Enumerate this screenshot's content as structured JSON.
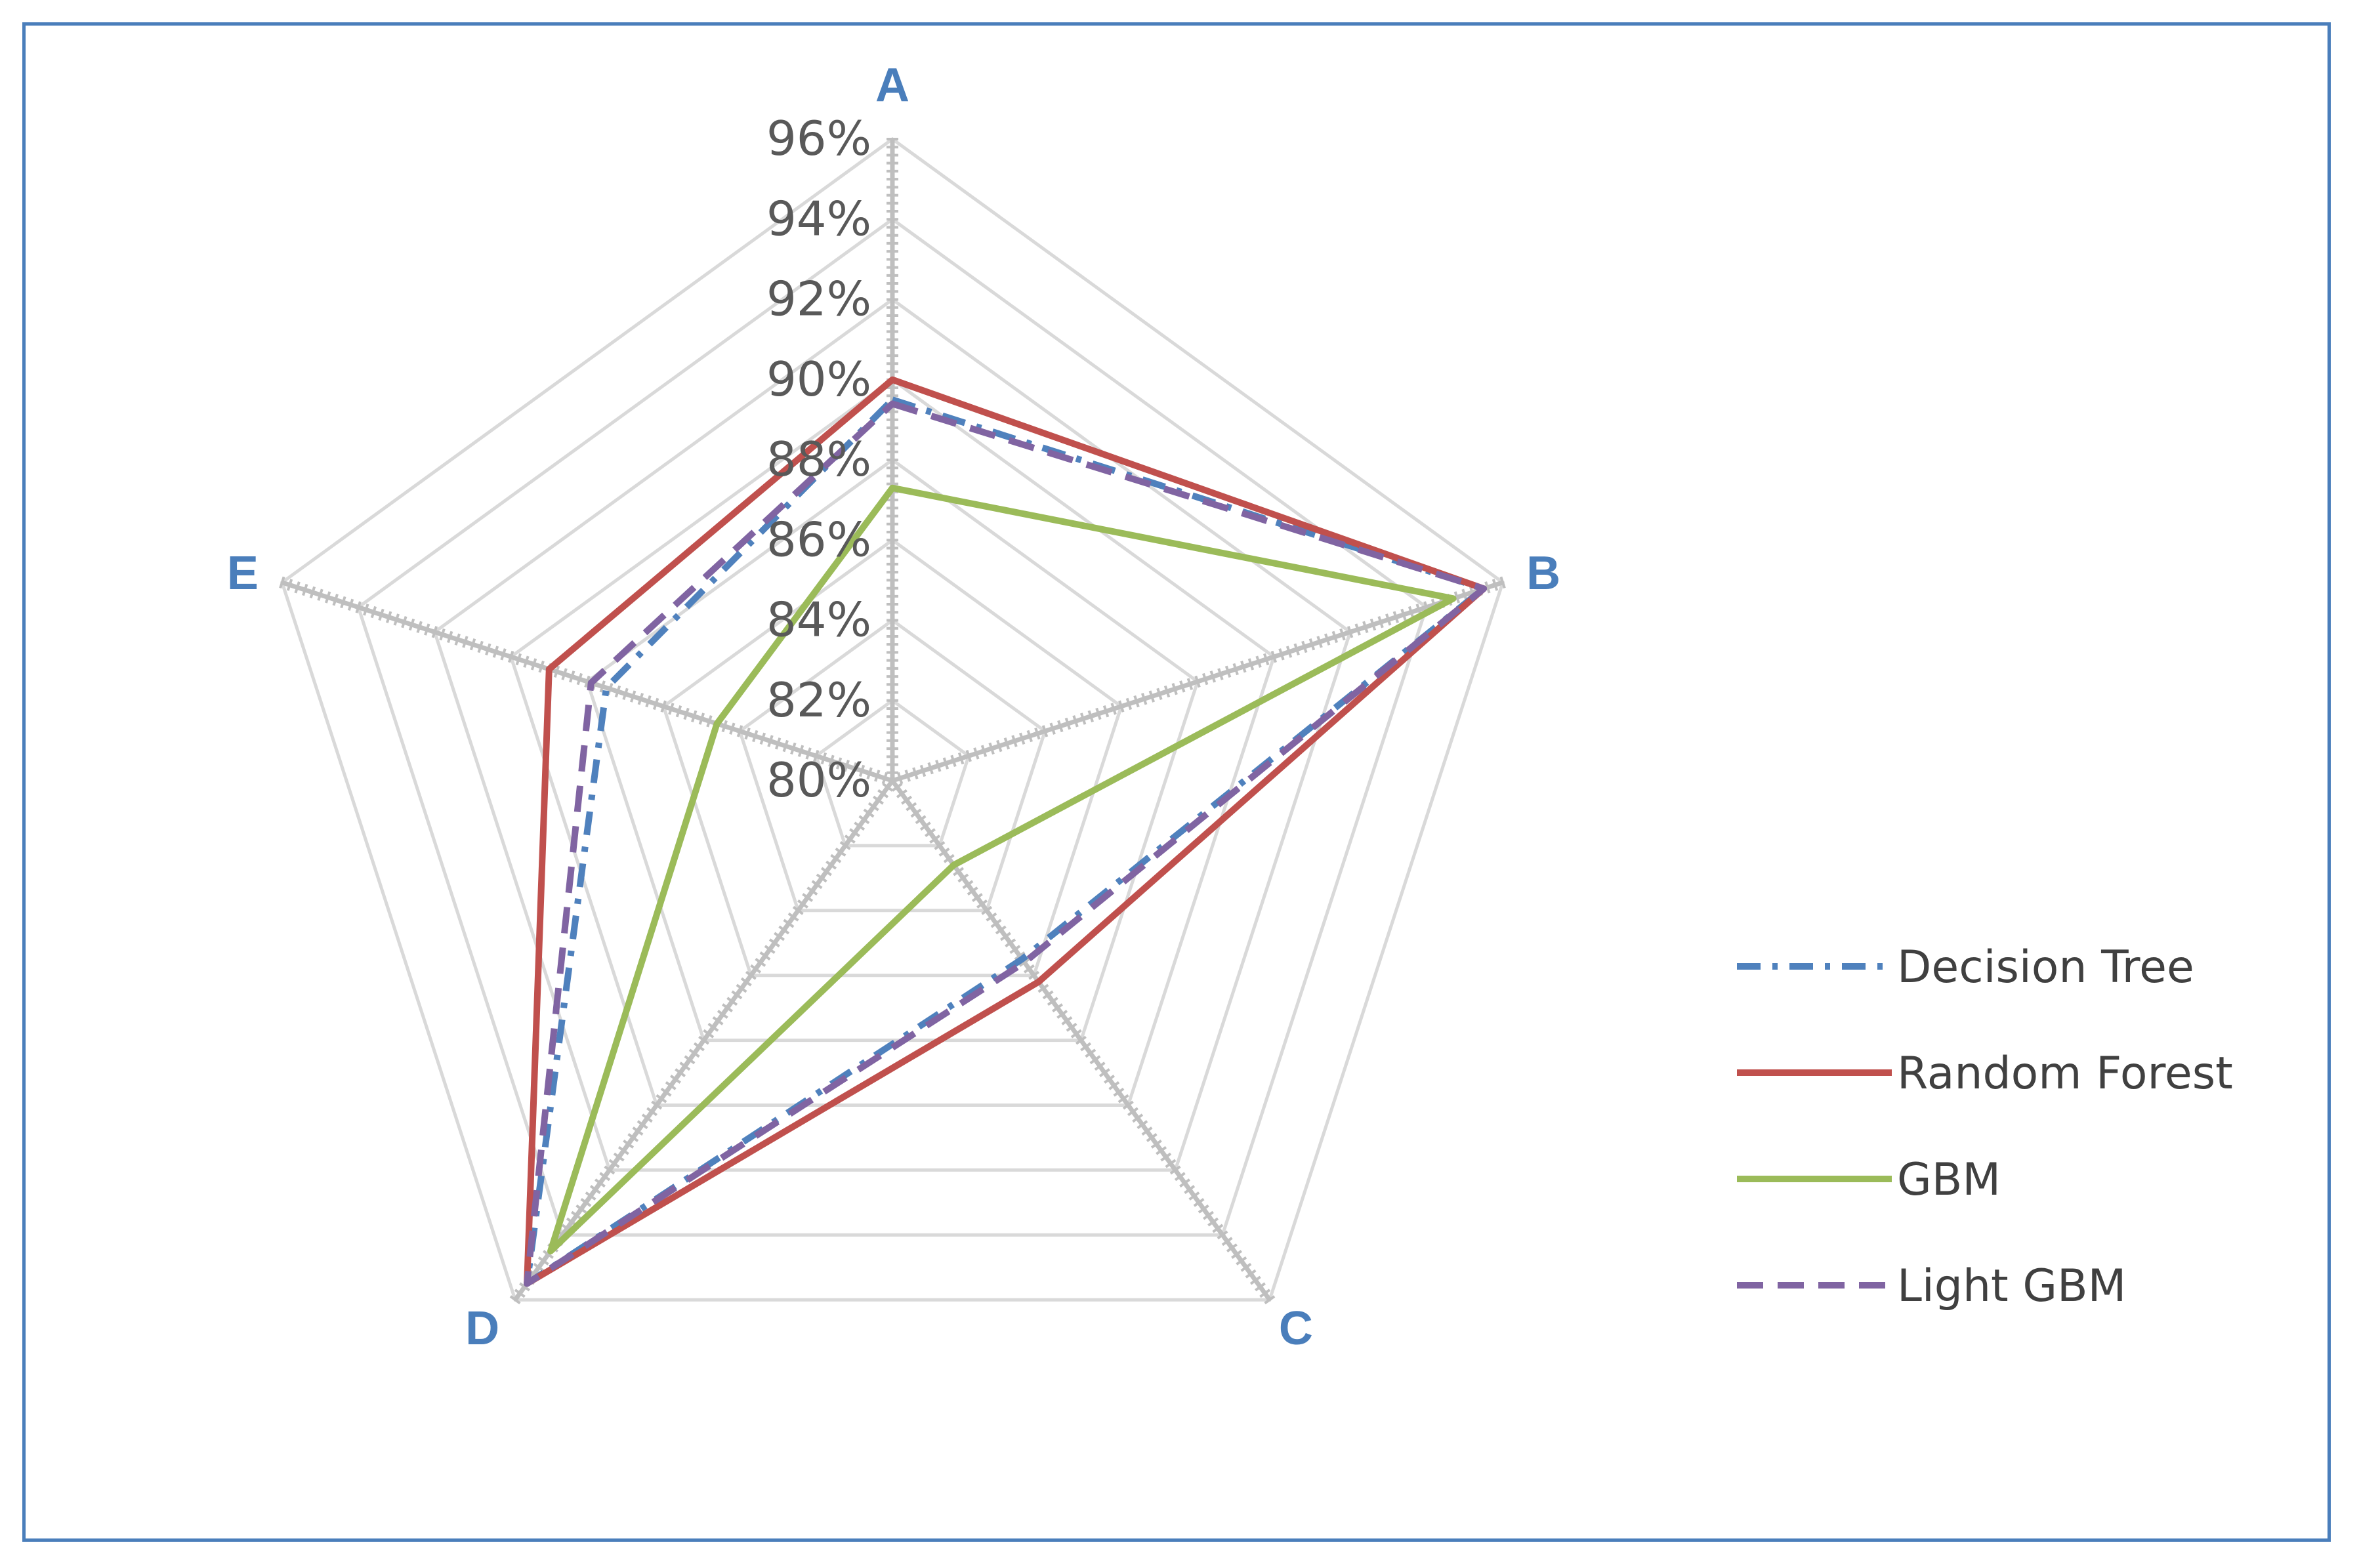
{
  "chart_data": {
    "type": "radar",
    "axes": [
      "A",
      "B",
      "C",
      "D",
      "E"
    ],
    "tick_labels": [
      "80%",
      "82%",
      "84%",
      "86%",
      "88%",
      "90%",
      "92%",
      "94%",
      "96%"
    ],
    "rlim": [
      80,
      96
    ],
    "tick_step": 2,
    "grid": true,
    "legend_position": "right",
    "series": [
      {
        "name": "Decision Tree",
        "color": "#4f81bd",
        "dash": "dash-dot",
        "values": [
          89.5,
          95.5,
          85.5,
          95.5,
          87.5
        ]
      },
      {
        "name": "Random Forest",
        "color": "#c0504d",
        "dash": "solid",
        "values": [
          90.0,
          95.5,
          86.2,
          95.5,
          89.0
        ]
      },
      {
        "name": "GBM",
        "color": "#9bbb59",
        "dash": "solid",
        "values": [
          87.3,
          94.7,
          82.6,
          94.5,
          84.6
        ]
      },
      {
        "name": "Light GBM",
        "color": "#8064a2",
        "dash": "dash",
        "values": [
          89.4,
          95.5,
          85.6,
          95.5,
          87.9
        ]
      }
    ]
  }
}
